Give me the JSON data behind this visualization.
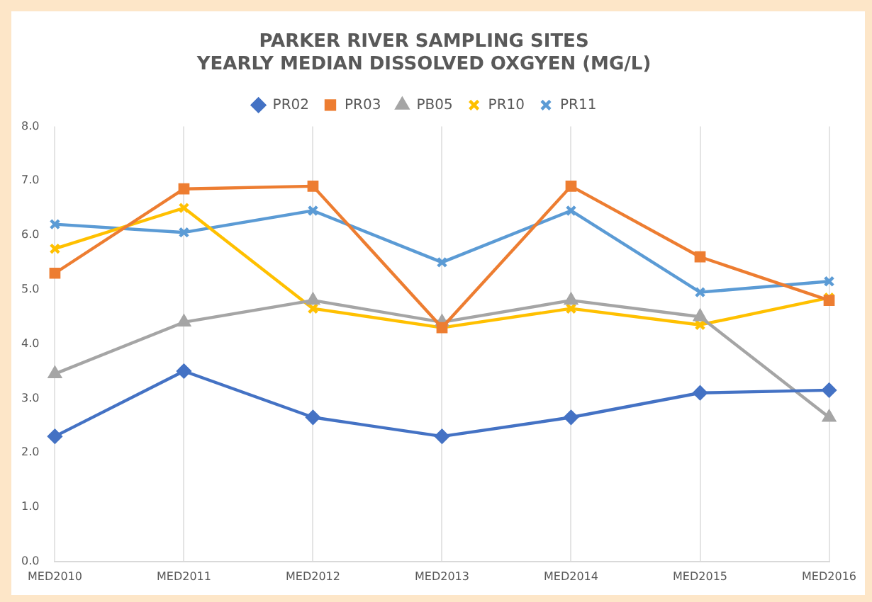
{
  "chart_data": {
    "type": "line",
    "title": [
      "PARKER RIVER SAMPLING SITES",
      "YEARLY MEDIAN DISSOLVED OXGYEN (MG/L)"
    ],
    "categories": [
      "MED2010",
      "MED2011",
      "MED2012",
      "MED2013",
      "MED2014",
      "MED2015",
      "MED2016"
    ],
    "series": [
      {
        "name": "PR02",
        "color": "#4472c4",
        "marker": "diamond",
        "values": [
          2.3,
          3.5,
          2.65,
          2.3,
          2.65,
          3.1,
          3.15
        ]
      },
      {
        "name": "PR03",
        "color": "#ed7d31",
        "marker": "square",
        "values": [
          5.3,
          6.85,
          6.9,
          4.3,
          6.9,
          5.6,
          4.8
        ]
      },
      {
        "name": "PB05",
        "color": "#a5a5a5",
        "marker": "triangle",
        "values": [
          3.45,
          4.4,
          4.8,
          4.4,
          4.8,
          4.5,
          2.65
        ]
      },
      {
        "name": "PR10",
        "color": "#ffc000",
        "marker": "cross",
        "values": [
          5.75,
          6.5,
          4.65,
          4.3,
          4.65,
          4.35,
          4.85
        ]
      },
      {
        "name": "PR11",
        "color": "#5b9bd5",
        "marker": "cross",
        "values": [
          6.2,
          6.05,
          6.45,
          5.5,
          6.45,
          4.95,
          5.15
        ]
      }
    ],
    "ylim": [
      0,
      8
    ],
    "yticks": [
      {
        "value": 0,
        "label": "0.0"
      },
      {
        "value": 1,
        "label": "1.0"
      },
      {
        "value": 2,
        "label": "2.0"
      },
      {
        "value": 3,
        "label": "3.0"
      },
      {
        "value": 4,
        "label": "4.0"
      },
      {
        "value": 5,
        "label": "5.0"
      },
      {
        "value": 6,
        "label": "6.0"
      },
      {
        "value": 7,
        "label": "7.0"
      },
      {
        "value": 8,
        "label": "8.0"
      }
    ],
    "grid": "x",
    "legend": "top",
    "line_style": "solid"
  }
}
